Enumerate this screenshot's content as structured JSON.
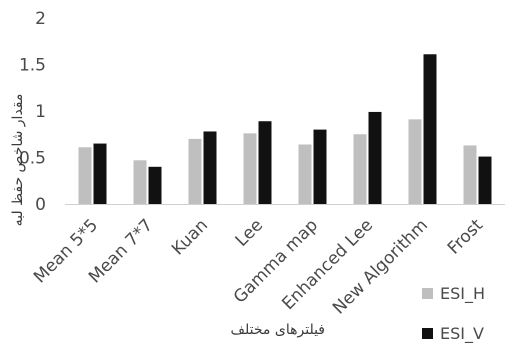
{
  "chart_data": {
    "type": "bar",
    "title": "",
    "xlabel": "فیلترهای مختلف",
    "ylabel": "مقدار شاخص حفظ لبه",
    "categories": [
      "Mean 5*5",
      "Mean 7*7",
      "Kuan",
      "Lee",
      "Gamma map",
      "Enhanced Lee",
      "New Algorithm",
      "Frost"
    ],
    "series": [
      {
        "name": "ESI_H",
        "color": "#bfbfbf",
        "values": [
          0.61,
          0.47,
          0.7,
          0.76,
          0.64,
          0.75,
          0.91,
          0.63
        ]
      },
      {
        "name": "ESI_V",
        "color": "#111111",
        "values": [
          0.65,
          0.4,
          0.78,
          0.89,
          0.8,
          0.99,
          1.61,
          0.51
        ]
      }
    ],
    "ylim": [
      0,
      2
    ],
    "yticks": [
      "0",
      "0.5",
      "1",
      "1.5",
      "2"
    ],
    "grid": false,
    "legend_position": "bottom-right"
  }
}
